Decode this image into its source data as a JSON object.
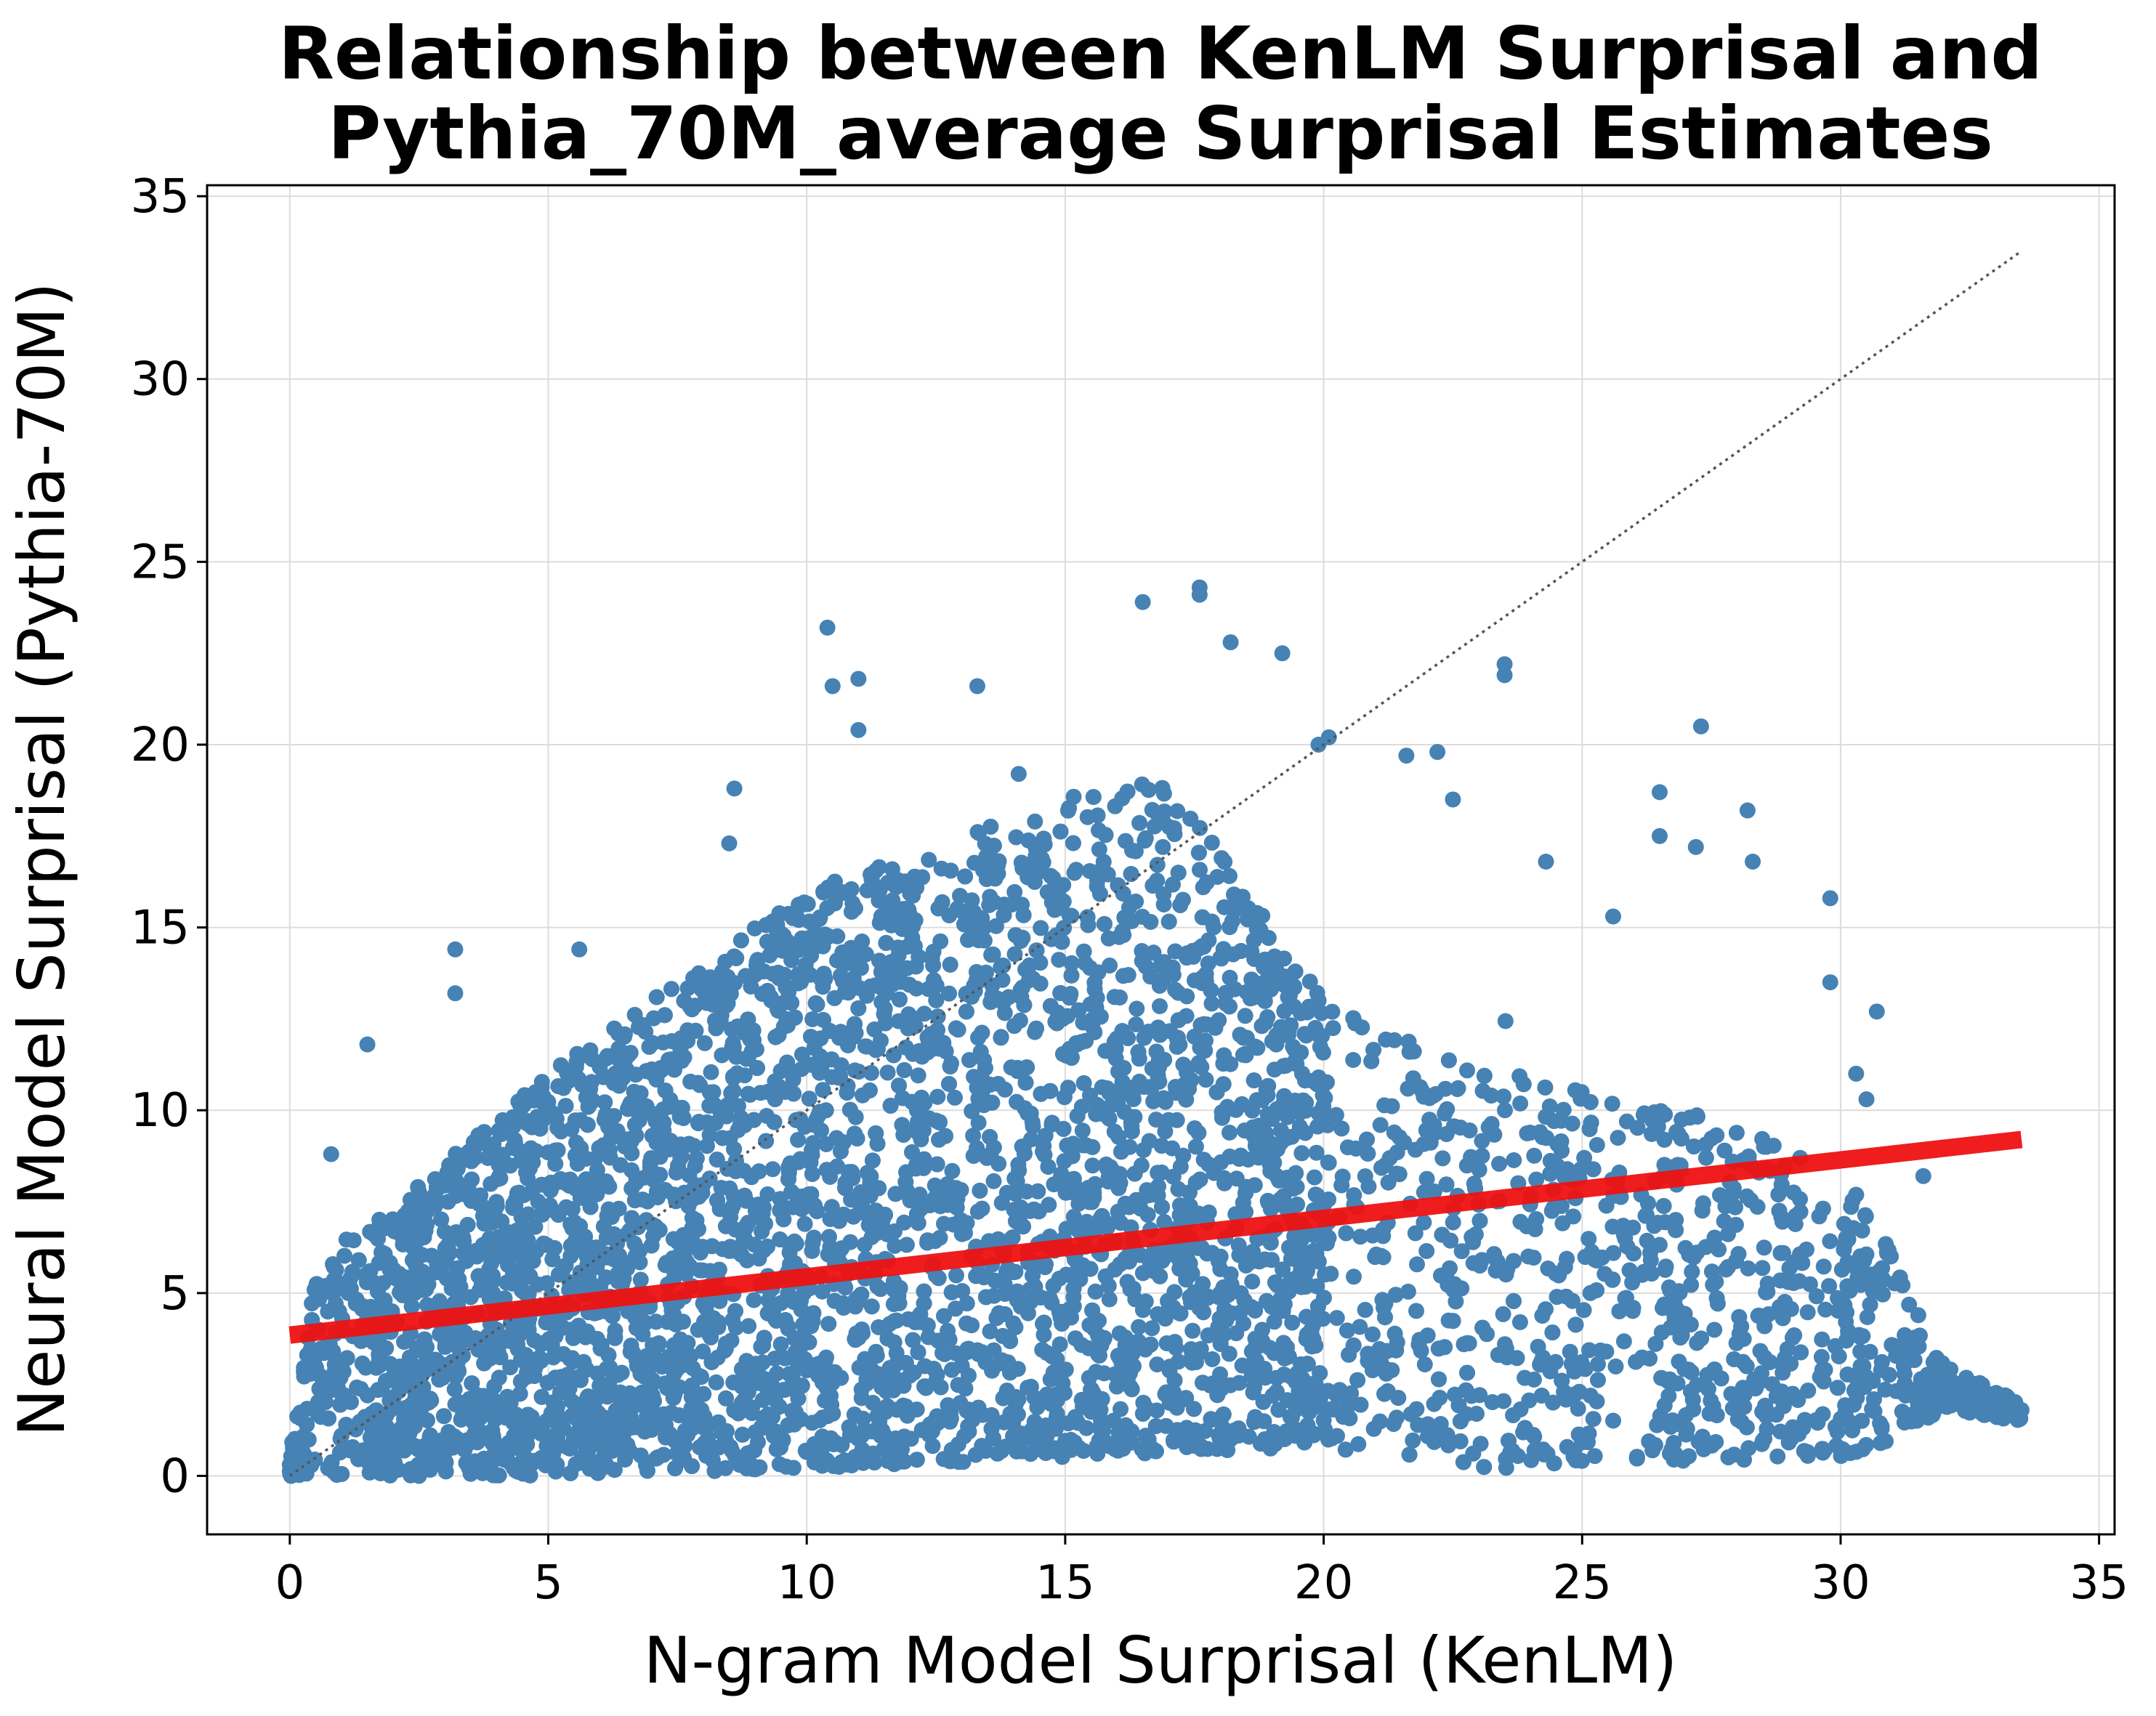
{
  "chart_data": {
    "type": "scatter",
    "title_lines": [
      "Relationship between KenLM Surprisal and",
      "Pythia_70M_average Surprisal Estimates"
    ],
    "xlabel": "N-gram Model Surprisal (KenLM)",
    "ylabel": "Neural Model Surprisal (Pythia-70M)",
    "xlim": [
      -1.6,
      35.3
    ],
    "ylim": [
      -1.6,
      35.3
    ],
    "xticks": [
      0,
      5,
      10,
      15,
      20,
      25,
      30,
      35
    ],
    "yticks": [
      0,
      5,
      10,
      15,
      20,
      25,
      30,
      35
    ],
    "xtick_labels": [
      "0",
      "5",
      "10",
      "15",
      "20",
      "25",
      "30",
      "35"
    ],
    "ytick_labels": [
      "0",
      "5",
      "10",
      "15",
      "20",
      "25",
      "30",
      "35"
    ],
    "grid": true,
    "colors": {
      "points": "#4682b4",
      "fit_line": "#ee1111",
      "identity_line": "#555555"
    },
    "regression_line": {
      "x": [
        0,
        33.5
      ],
      "y": [
        3.85,
        9.2
      ]
    },
    "identity_line": {
      "x": [
        0,
        33.5
      ],
      "y": [
        0,
        33.5
      ]
    },
    "scatter_density": {
      "x_range": [
        0,
        33.5
      ],
      "upper_envelope": [
        [
          0,
          0.6
        ],
        [
          0.5,
          5.5
        ],
        [
          1,
          6.5
        ],
        [
          2,
          7.5
        ],
        [
          3,
          8.5
        ],
        [
          4,
          10
        ],
        [
          5,
          11
        ],
        [
          6,
          12
        ],
        [
          7,
          13
        ],
        [
          8,
          14
        ],
        [
          9,
          15
        ],
        [
          10,
          16
        ],
        [
          11,
          16.5
        ],
        [
          12,
          17
        ],
        [
          13,
          17.5
        ],
        [
          14,
          18
        ],
        [
          15,
          18.5
        ],
        [
          16,
          19
        ],
        [
          17,
          19
        ],
        [
          18,
          17
        ],
        [
          18.5,
          16
        ],
        [
          19,
          15
        ],
        [
          20,
          13.5
        ],
        [
          21,
          12.5
        ],
        [
          22,
          12
        ],
        [
          23,
          11.5
        ],
        [
          23.5,
          12.5
        ],
        [
          24,
          11
        ],
        [
          25,
          10.5
        ],
        [
          26,
          10
        ],
        [
          27,
          10
        ],
        [
          28,
          9.5
        ],
        [
          29,
          9
        ],
        [
          30,
          8.5
        ],
        [
          30.5,
          7.5
        ],
        [
          31,
          6
        ],
        [
          32,
          3
        ],
        [
          33.5,
          2
        ]
      ],
      "lower_envelope": [
        [
          0,
          0
        ],
        [
          5,
          0
        ],
        [
          10,
          0.2
        ],
        [
          15,
          0.5
        ],
        [
          20,
          0.8
        ],
        [
          23.5,
          0
        ],
        [
          25,
          0.3
        ],
        [
          30,
          0.5
        ],
        [
          31,
          1
        ],
        [
          32,
          1.8
        ],
        [
          33.5,
          1.5
        ]
      ]
    },
    "outliers": [
      [
        0.8,
        8.8
      ],
      [
        1.5,
        11.8
      ],
      [
        3.2,
        14.4
      ],
      [
        3.2,
        13.2
      ],
      [
        5.6,
        14.4
      ],
      [
        10.4,
        23.2
      ],
      [
        10.5,
        21.6
      ],
      [
        11,
        21.8
      ],
      [
        11,
        20.4
      ],
      [
        13.3,
        21.6
      ],
      [
        16.5,
        23.9
      ],
      [
        17.6,
        24.3
      ],
      [
        17.6,
        24.1
      ],
      [
        18.2,
        22.8
      ],
      [
        19.2,
        22.5
      ],
      [
        27.3,
        20.5
      ],
      [
        23.5,
        22.2
      ],
      [
        23.5,
        21.9
      ],
      [
        28.2,
        18.2
      ],
      [
        26.5,
        18.7
      ],
      [
        29.8,
        15.8
      ],
      [
        33.5,
        1.8
      ],
      [
        32.2,
        2.2
      ],
      [
        32,
        2.2
      ],
      [
        31.6,
        8.2
      ],
      [
        30.5,
        10.3
      ],
      [
        30.3,
        11
      ],
      [
        8.6,
        18.8
      ],
      [
        8.5,
        17.3
      ],
      [
        14.1,
        19.2
      ],
      [
        20.1,
        20.2
      ],
      [
        19.9,
        20
      ],
      [
        21.6,
        19.7
      ],
      [
        22.2,
        19.8
      ],
      [
        25.6,
        15.3
      ],
      [
        24.3,
        16.8
      ],
      [
        26.5,
        17.5
      ],
      [
        27.2,
        17.2
      ],
      [
        28.3,
        16.8
      ],
      [
        29.8,
        13.5
      ],
      [
        30.7,
        12.7
      ],
      [
        22.5,
        18.5
      ]
    ]
  }
}
